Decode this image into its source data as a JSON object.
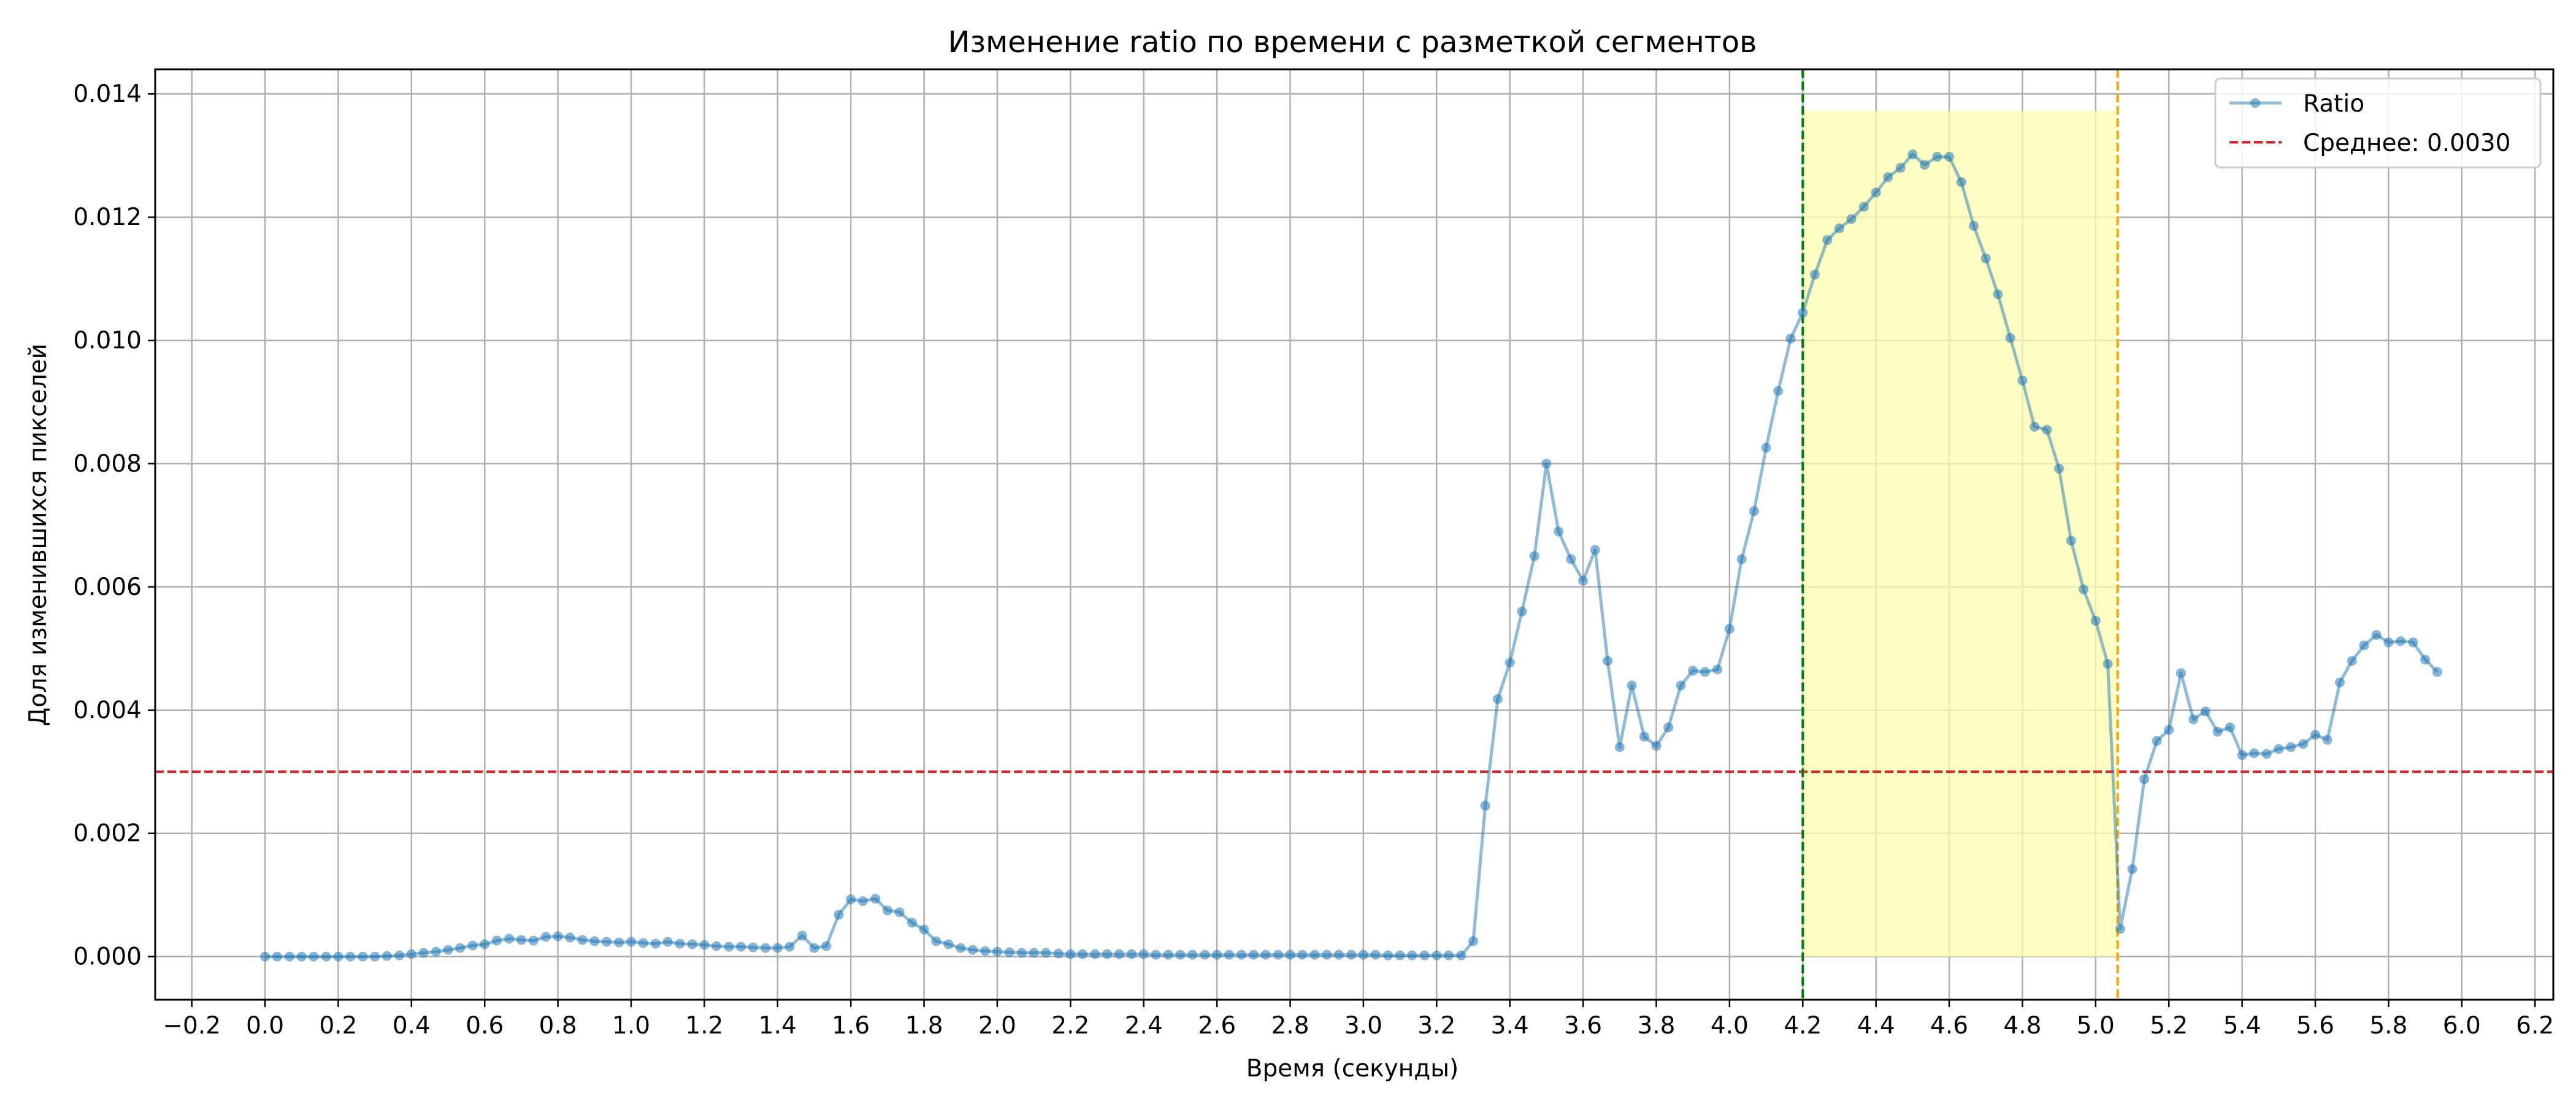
{
  "chart_data": {
    "type": "line",
    "title": "Изменение ratio по времени с разметкой сегментов",
    "xlabel": "Время (секунды)",
    "ylabel": "Доля изменившихся пикселей",
    "xlim": [
      -0.3,
      6.25
    ],
    "ylim": [
      -0.0007,
      0.0144
    ],
    "xticks": [
      -0.2,
      0.0,
      0.2,
      0.4,
      0.6,
      0.8,
      1.0,
      1.2,
      1.4,
      1.6,
      1.8,
      2.0,
      2.2,
      2.4,
      2.6,
      2.8,
      3.0,
      3.2,
      3.4,
      3.6,
      3.8,
      4.0,
      4.2,
      4.4,
      4.6,
      4.8,
      5.0,
      5.2,
      5.4,
      5.6,
      5.8,
      6.0,
      6.2
    ],
    "xtick_labels": [
      "−0.2",
      "0.0",
      "0.2",
      "0.4",
      "0.6",
      "0.8",
      "1.0",
      "1.2",
      "1.4",
      "1.6",
      "1.8",
      "2.0",
      "2.2",
      "2.4",
      "2.6",
      "2.8",
      "3.0",
      "3.2",
      "3.4",
      "3.6",
      "3.8",
      "4.0",
      "4.2",
      "4.4",
      "4.6",
      "4.8",
      "5.0",
      "5.2",
      "5.4",
      "5.6",
      "5.8",
      "6.0",
      "6.2"
    ],
    "yticks": [
      0.0,
      0.002,
      0.004,
      0.006,
      0.008,
      0.01,
      0.012,
      0.014
    ],
    "ytick_labels": [
      "0.000",
      "0.002",
      "0.004",
      "0.006",
      "0.008",
      "0.010",
      "0.012",
      "0.014"
    ],
    "grid": true,
    "legend_position": "top-right",
    "series": [
      {
        "name": "Ratio",
        "color": "#1f77b4",
        "x": [
          0.0,
          0.033,
          0.067,
          0.1,
          0.133,
          0.167,
          0.2,
          0.233,
          0.267,
          0.3,
          0.333,
          0.367,
          0.4,
          0.433,
          0.467,
          0.5,
          0.533,
          0.567,
          0.6,
          0.633,
          0.667,
          0.7,
          0.733,
          0.767,
          0.8,
          0.833,
          0.867,
          0.9,
          0.933,
          0.967,
          1.0,
          1.033,
          1.067,
          1.1,
          1.133,
          1.167,
          1.2,
          1.233,
          1.267,
          1.3,
          1.333,
          1.367,
          1.4,
          1.433,
          1.467,
          1.5,
          1.533,
          1.567,
          1.6,
          1.633,
          1.667,
          1.7,
          1.733,
          1.767,
          1.8,
          1.833,
          1.867,
          1.9,
          1.933,
          1.967,
          2.0,
          2.033,
          2.067,
          2.1,
          2.133,
          2.167,
          2.2,
          2.233,
          2.267,
          2.3,
          2.333,
          2.367,
          2.4,
          2.433,
          2.467,
          2.5,
          2.533,
          2.567,
          2.6,
          2.633,
          2.667,
          2.7,
          2.733,
          2.767,
          2.8,
          2.833,
          2.867,
          2.9,
          2.933,
          2.967,
          3.0,
          3.033,
          3.067,
          3.1,
          3.133,
          3.167,
          3.2,
          3.233,
          3.267,
          3.3,
          3.333,
          3.367,
          3.4,
          3.433,
          3.467,
          3.5,
          3.533,
          3.567,
          3.6,
          3.633,
          3.667,
          3.7,
          3.733,
          3.767,
          3.8,
          3.833,
          3.867,
          3.9,
          3.933,
          3.967,
          4.0,
          4.033,
          4.067,
          4.1,
          4.133,
          4.167,
          4.2,
          4.233,
          4.267,
          4.3,
          4.333,
          4.367,
          4.4,
          4.433,
          4.467,
          4.5,
          4.533,
          4.567,
          4.6,
          4.633,
          4.667,
          4.7,
          4.733,
          4.767,
          4.8,
          4.833,
          4.867,
          4.9,
          4.933,
          4.967,
          5.0,
          5.033,
          5.067,
          5.1,
          5.133,
          5.167,
          5.2,
          5.233,
          5.267,
          5.3,
          5.333,
          5.367,
          5.4,
          5.433,
          5.467,
          5.5,
          5.533,
          5.567,
          5.6,
          5.633,
          5.667,
          5.7,
          5.733,
          5.767,
          5.8,
          5.833,
          5.867,
          5.9,
          5.933
        ],
        "y": [
          0.0,
          0.0,
          0.0,
          0.0,
          0.0,
          0.0,
          0.0,
          0.0,
          0.0,
          0.0,
          1e-05,
          2e-05,
          4e-05,
          6e-05,
          8e-05,
          0.00011,
          0.00014,
          0.00018,
          0.0002,
          0.00026,
          0.00029,
          0.00027,
          0.00026,
          0.00032,
          0.00033,
          0.00031,
          0.00027,
          0.00025,
          0.00024,
          0.00023,
          0.00024,
          0.00022,
          0.00021,
          0.00024,
          0.00021,
          0.0002,
          0.00019,
          0.00017,
          0.00016,
          0.00016,
          0.00015,
          0.00014,
          0.00014,
          0.00016,
          0.00034,
          0.00014,
          0.00017,
          0.00068,
          0.00093,
          0.0009,
          0.00094,
          0.00075,
          0.00072,
          0.00055,
          0.00044,
          0.00025,
          0.0002,
          0.00014,
          0.00011,
          9e-05,
          8e-05,
          7e-05,
          6e-05,
          6e-05,
          6e-05,
          5e-05,
          4e-05,
          4e-05,
          4e-05,
          4e-05,
          4e-05,
          4e-05,
          4e-05,
          3e-05,
          3e-05,
          3e-05,
          3e-05,
          3e-05,
          3e-05,
          3e-05,
          3e-05,
          3e-05,
          3e-05,
          3e-05,
          3e-05,
          3e-05,
          3e-05,
          3e-05,
          3e-05,
          3e-05,
          3e-05,
          3e-05,
          2e-05,
          2e-05,
          2e-05,
          2e-05,
          2e-05,
          2e-05,
          2e-05,
          0.00025,
          0.00245,
          0.00418,
          0.00477,
          0.0056,
          0.0065,
          0.008,
          0.0069,
          0.00645,
          0.0061,
          0.0066,
          0.0048,
          0.0034,
          0.0044,
          0.00357,
          0.00342,
          0.00372,
          0.0044,
          0.00464,
          0.00462,
          0.00466,
          0.00532,
          0.00645,
          0.00723,
          0.00826,
          0.00918,
          0.01003,
          0.01045,
          0.01107,
          0.01163,
          0.01182,
          0.01197,
          0.01217,
          0.0124,
          0.01265,
          0.0128,
          0.01302,
          0.01285,
          0.01298,
          0.01298,
          0.01257,
          0.01186,
          0.01133,
          0.01075,
          0.01004,
          0.00935,
          0.0086,
          0.00855,
          0.00792,
          0.00675,
          0.00596,
          0.00545,
          0.00475,
          0.00045,
          0.00142,
          0.00288,
          0.0035,
          0.00368,
          0.0046,
          0.00385,
          0.00398,
          0.00365,
          0.00372,
          0.00327,
          0.0033,
          0.00329,
          0.00337,
          0.0034,
          0.00345,
          0.0036,
          0.00352,
          0.00445,
          0.0048,
          0.00505,
          0.00522,
          0.0051,
          0.00512,
          0.0051,
          0.00482,
          0.00462
        ]
      }
    ],
    "mean_line": {
      "name": "Среднее: 0.0030",
      "y": 0.003,
      "color": "#d62728"
    },
    "segment": {
      "x_start": 4.2,
      "x_end": 5.06,
      "y_top": 0.01372,
      "y_bottom": 0.0,
      "fill_color": "#ffffb0"
    },
    "vlines": [
      {
        "x": 4.2,
        "color": "#008000"
      },
      {
        "x": 5.06,
        "color": "#ffa500"
      }
    ]
  }
}
